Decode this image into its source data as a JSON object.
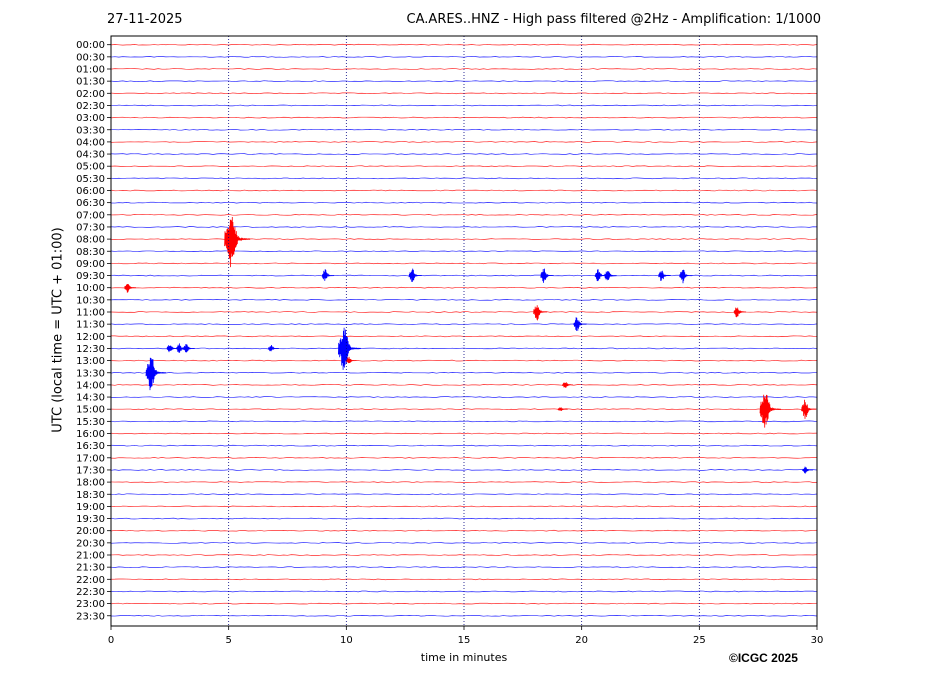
{
  "header": {
    "date": "27-11-2025",
    "title": "CA.ARES..HNZ - High pass filtered @2Hz - Amplification: 1/1000"
  },
  "footer": {
    "copyright": "©ICGC 2025"
  },
  "colors": {
    "trace_a": "#ff0000",
    "trace_b": "#0000ff",
    "grid": "#000080",
    "axes": "#000000"
  },
  "chart_data": {
    "type": "line",
    "title": "CA.ARES..HNZ - High pass filtered @2Hz - Amplification: 1/1000",
    "xlabel": "time in minutes",
    "ylabel": "UTC (local time = UTC + 01:00)",
    "xlim": [
      0,
      30
    ],
    "x_ticks": [
      0,
      5,
      10,
      15,
      20,
      25,
      30
    ],
    "x_gridlines": [
      5,
      10,
      15,
      20,
      25
    ],
    "grid": "vertical dotted",
    "rows": [
      "00:00",
      "00:30",
      "01:00",
      "01:30",
      "02:00",
      "02:30",
      "03:00",
      "03:30",
      "04:00",
      "04:30",
      "05:00",
      "05:30",
      "06:00",
      "06:30",
      "07:00",
      "07:30",
      "08:00",
      "08:30",
      "09:00",
      "09:30",
      "10:00",
      "10:30",
      "11:00",
      "11:30",
      "12:00",
      "12:30",
      "13:00",
      "13:30",
      "14:00",
      "14:30",
      "15:00",
      "15:30",
      "16:00",
      "16:30",
      "17:00",
      "17:30",
      "18:00",
      "18:30",
      "19:00",
      "19:30",
      "20:00",
      "20:30",
      "21:00",
      "21:30",
      "22:00",
      "22:30",
      "23:00",
      "23:30"
    ],
    "row_colors": "alternating red / blue",
    "events": [
      {
        "row": "08:00",
        "minute": 5.1,
        "amplitude": 2.2
      },
      {
        "row": "09:30",
        "minute": 9.1,
        "amplitude": 0.5
      },
      {
        "row": "09:30",
        "minute": 12.8,
        "amplitude": 0.6
      },
      {
        "row": "09:30",
        "minute": 18.4,
        "amplitude": 0.6
      },
      {
        "row": "09:30",
        "minute": 20.7,
        "amplitude": 0.5
      },
      {
        "row": "09:30",
        "minute": 21.1,
        "amplitude": 0.5
      },
      {
        "row": "09:30",
        "minute": 23.4,
        "amplitude": 0.5
      },
      {
        "row": "09:30",
        "minute": 24.3,
        "amplitude": 0.6
      },
      {
        "row": "10:00",
        "minute": 0.7,
        "amplitude": 0.4
      },
      {
        "row": "11:00",
        "minute": 18.1,
        "amplitude": 0.7
      },
      {
        "row": "11:00",
        "minute": 26.6,
        "amplitude": 0.5
      },
      {
        "row": "11:30",
        "minute": 19.8,
        "amplitude": 0.6
      },
      {
        "row": "12:30",
        "minute": 2.5,
        "amplitude": 0.4
      },
      {
        "row": "12:30",
        "minute": 2.9,
        "amplitude": 0.4
      },
      {
        "row": "12:30",
        "minute": 3.2,
        "amplitude": 0.4
      },
      {
        "row": "12:30",
        "minute": 6.8,
        "amplitude": 0.3
      },
      {
        "row": "12:30",
        "minute": 9.9,
        "amplitude": 1.8
      },
      {
        "row": "13:00",
        "minute": 10.1,
        "amplitude": 0.3
      },
      {
        "row": "13:30",
        "minute": 1.7,
        "amplitude": 1.5
      },
      {
        "row": "14:00",
        "minute": 19.3,
        "amplitude": 0.3
      },
      {
        "row": "15:00",
        "minute": 19.1,
        "amplitude": 0.2
      },
      {
        "row": "15:00",
        "minute": 27.8,
        "amplitude": 1.6
      },
      {
        "row": "15:00",
        "minute": 29.5,
        "amplitude": 0.8
      },
      {
        "row": "17:30",
        "minute": 29.5,
        "amplitude": 0.3
      }
    ]
  }
}
